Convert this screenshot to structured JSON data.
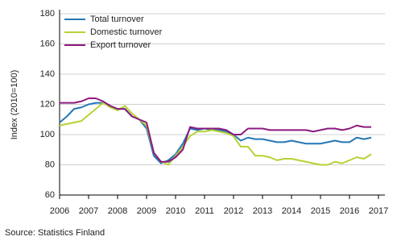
{
  "chart_data": {
    "type": "line",
    "y_label": "Index (2010=100)",
    "source": "Source: Statistics Finland",
    "x": [
      2006,
      2006.25,
      2006.5,
      2006.75,
      2007,
      2007.25,
      2007.5,
      2007.75,
      2008,
      2008.25,
      2008.5,
      2008.75,
      2009,
      2009.25,
      2009.5,
      2009.75,
      2010,
      2010.25,
      2010.5,
      2010.75,
      2011,
      2011.25,
      2011.5,
      2011.75,
      2012,
      2012.25,
      2012.5,
      2012.75,
      2013,
      2013.25,
      2013.5,
      2013.75,
      2014,
      2014.25,
      2014.5,
      2014.75,
      2015,
      2015.25,
      2015.5,
      2015.75,
      2016,
      2016.25,
      2016.5,
      2016.75
    ],
    "series": [
      {
        "name": "Total turnover",
        "color": "#2577b5",
        "values": [
          108,
          112,
          117,
          118,
          120,
          121,
          121,
          119,
          117,
          117,
          112,
          110,
          104,
          86,
          81,
          83,
          87,
          94,
          104,
          103,
          104,
          103,
          103,
          102,
          100,
          96,
          98,
          97,
          97,
          96,
          95,
          95,
          96,
          95,
          94,
          94,
          94,
          95,
          96,
          95,
          95,
          98,
          97,
          98
        ]
      },
      {
        "name": "Domestic turnover",
        "color": "#b5d334",
        "values": [
          106,
          107,
          108,
          109,
          113,
          117,
          121,
          118,
          116,
          119,
          114,
          110,
          106,
          88,
          82,
          80,
          86,
          92,
          99,
          102,
          102,
          103,
          102,
          101,
          99,
          92,
          92,
          86,
          86,
          85,
          83,
          84,
          84,
          83,
          82,
          81,
          80,
          80,
          82,
          81,
          83,
          85,
          84,
          87
        ]
      },
      {
        "name": "Export turnover",
        "color": "#8c1a80",
        "values": [
          121,
          121,
          121,
          122,
          124,
          124,
          122,
          119,
          117,
          117,
          112,
          110,
          108,
          88,
          82,
          82,
          85,
          90,
          105,
          104,
          104,
          104,
          104,
          103,
          100,
          100,
          104,
          104,
          104,
          103,
          103,
          103,
          103,
          103,
          103,
          102,
          103,
          104,
          104,
          103,
          104,
          106,
          105,
          105
        ]
      }
    ],
    "xlim": [
      2006,
      2017
    ],
    "xticks": [
      2006,
      2007,
      2008,
      2009,
      2010,
      2011,
      2012,
      2013,
      2014,
      2015,
      2016,
      2017
    ],
    "ylim": [
      60,
      180
    ],
    "yticks": [
      60,
      80,
      100,
      120,
      140,
      160,
      180
    ],
    "grid": true,
    "legend": "top-left"
  }
}
